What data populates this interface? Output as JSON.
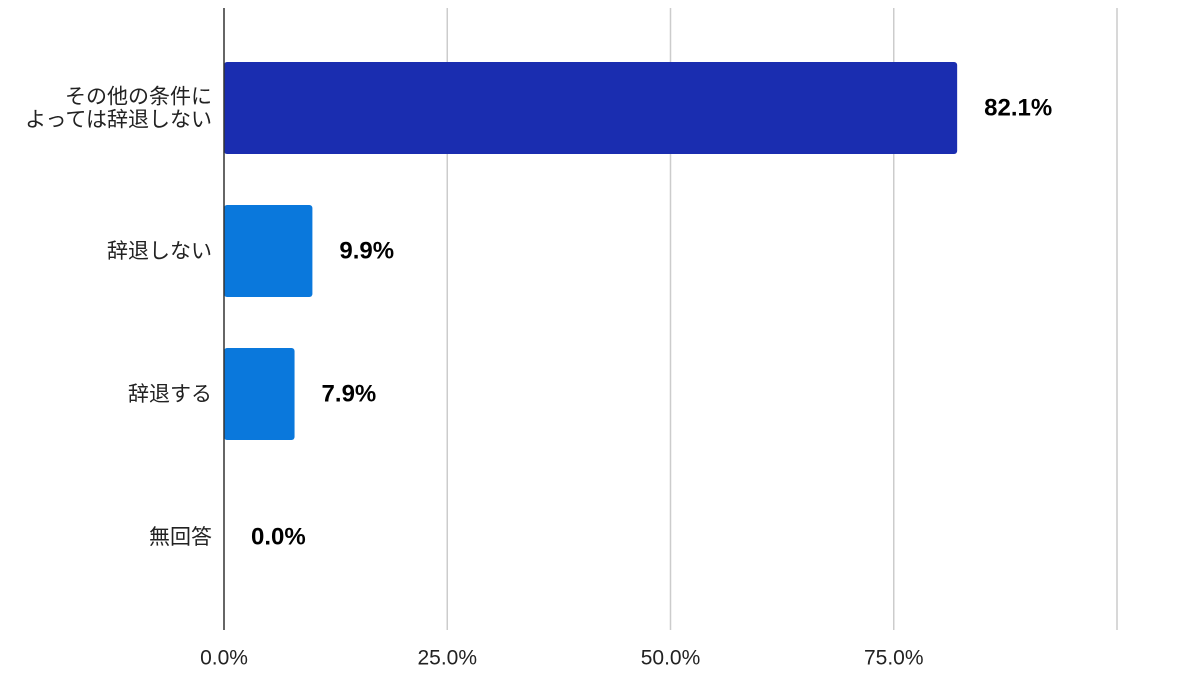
{
  "chart_data": {
    "type": "bar",
    "orientation": "horizontal",
    "categories": [
      [
        "その他の条件に",
        "よっては辞退しない"
      ],
      [
        "辞退しない"
      ],
      [
        "辞退する"
      ],
      [
        "無回答"
      ]
    ],
    "values": [
      82.1,
      9.9,
      7.9,
      0.0
    ],
    "value_labels": [
      "82.1%",
      "9.9%",
      "7.9%",
      "0.0%"
    ],
    "bar_colors": [
      "#1a2db0",
      "#0a78dc",
      "#0a78dc",
      "#0a78dc"
    ],
    "xlim": [
      0,
      100
    ],
    "x_ticks": [
      0,
      25,
      50,
      75,
      100
    ],
    "x_tick_labels": [
      "0.0%",
      "25.0%",
      "50.0%",
      "75.0%",
      ""
    ],
    "grid": true,
    "legend": "none"
  }
}
